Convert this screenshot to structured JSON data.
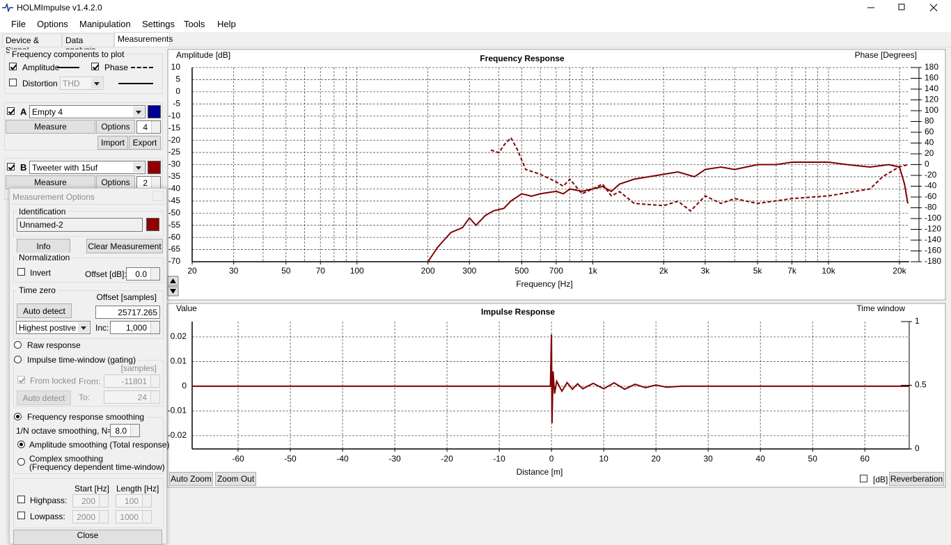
{
  "window": {
    "title": "HOLMImpulse  v1.4.2.0"
  },
  "menu": [
    "File",
    "Options",
    "Manipulation",
    "Settings",
    "Tools",
    "Help"
  ],
  "tabs": [
    "Device & Signal",
    "Data analysis",
    "Measurements"
  ],
  "components": {
    "title": "Frequency components to plot",
    "amplitude": "Amplitude",
    "phase": "Phase",
    "distortion": "Distortion",
    "thd": "THD"
  },
  "measurements": [
    {
      "letter": "A",
      "name": "Empty 4",
      "color": "#000090",
      "measure": "Measure",
      "options": "Options",
      "count": 4,
      "import": "Import",
      "export": "Export"
    },
    {
      "letter": "B",
      "name": "Tweeter with 15uf",
      "color": "#900000",
      "measure": "Measure",
      "options": "Options",
      "count": 2
    }
  ],
  "dialog": {
    "title": "Measurement Options",
    "identification": "Identification",
    "name": "Unnamed-2",
    "color": "#900000",
    "info": "Info",
    "clear": "Clear Measurement",
    "normalization": "Normalization",
    "invert": "Invert",
    "offset_db": "Offset [dB]:",
    "offset_db_value": "0.0",
    "time_zero": "Time zero",
    "offset_samples": "Offset [samples]",
    "auto_detect": "Auto detect",
    "offset_value": "25717.265",
    "method": "Highest postive pe",
    "inc": "Inc:",
    "inc_value": "1,000",
    "raw": "Raw response",
    "gating": "Impulse time-window (gating)",
    "samples": "[samples]",
    "from_locked": "From locked",
    "from": "From:",
    "from_value": "-11801",
    "auto_detect2": "Auto detect",
    "to": "To:",
    "to_value": "24",
    "smoothing": "Frequency response smoothing",
    "octave": "1/N octave smoothing, N=",
    "octave_value": "8.0",
    "amp_smoothing": "Amplitude smoothing (Total response)",
    "complex": "Complex smoothing",
    "complex_note": "(Frequency dependent time-window)",
    "start": "Start [Hz]",
    "length": "Length [Hz]",
    "highpass": "Highpass:",
    "hp_start": "200",
    "hp_length": "100",
    "lowpass": "Lowpass:",
    "lp_start": "2000",
    "lp_length": "1000",
    "close": "Close"
  },
  "buttons": {
    "auto_zoom": "Auto Zoom",
    "zoom_out": "Zoom Out",
    "db": "[dB]",
    "reverberation": "Reverberation"
  },
  "chart_data": [
    {
      "type": "line",
      "title": "Frequency Response",
      "ylabel": "Amplitude [dB]",
      "y2label": "Phase [Degrees]",
      "xlabel": "Frequency [Hz]",
      "xscale": "log",
      "xlim": [
        20,
        22000
      ],
      "xticks": [
        20,
        30,
        50,
        70,
        100,
        200,
        300,
        500,
        700,
        {
          "value": 1000,
          "label": "1k"
        },
        {
          "value": 2000,
          "label": "2k"
        },
        {
          "value": 3000,
          "label": "3k"
        },
        {
          "value": 5000,
          "label": "5k"
        },
        {
          "value": 7000,
          "label": "7k"
        },
        {
          "value": 10000,
          "label": "10k"
        },
        {
          "value": 20000,
          "label": "20k"
        }
      ],
      "xminor": [
        40,
        60,
        80,
        90,
        400,
        600,
        800,
        900,
        4000,
        6000,
        8000,
        9000
      ],
      "ylim": [
        -70,
        10
      ],
      "yticks": [
        10,
        5,
        0,
        -5,
        -10,
        -15,
        -20,
        -25,
        -30,
        -35,
        -40,
        -45,
        -50,
        -55,
        -60,
        -65,
        -70
      ],
      "y2lim": [
        -180,
        180
      ],
      "y2ticks": [
        180,
        160,
        140,
        120,
        100,
        80,
        60,
        40,
        20,
        0,
        -20,
        -40,
        -60,
        -80,
        -100,
        -120,
        -140,
        -160,
        -180
      ],
      "grid": true,
      "series": [
        {
          "color": "#800000",
          "linestyle": "solid",
          "x": [
            200,
            220,
            250,
            280,
            300,
            320,
            350,
            380,
            420,
            450,
            500,
            550,
            600,
            700,
            750,
            800,
            900,
            1000,
            1100,
            1200,
            1300,
            1500,
            2000,
            2300,
            2700,
            3000,
            3500,
            4000,
            5000,
            6000,
            7000,
            8000,
            10000,
            12000,
            15000,
            18000,
            20000,
            21000,
            21700
          ],
          "values": [
            -70,
            -64,
            -58,
            -56,
            -52,
            -55,
            -51,
            -49,
            -48,
            -45,
            -42,
            -43,
            -42,
            -41,
            -42,
            -40,
            -41,
            -40,
            -39,
            -41,
            -38,
            -36,
            -34,
            -33,
            -35,
            -32,
            -31,
            -32,
            -30,
            -30,
            -29,
            -29,
            -29,
            -30,
            -31,
            -30,
            -31,
            -38,
            -46
          ]
        },
        {
          "color": "#800000",
          "linestyle": "dashed",
          "axis": "y2",
          "x": [
            370,
            400,
            420,
            450,
            480,
            520,
            600,
            700,
            750,
            800,
            900,
            1000,
            1100,
            1200,
            1300,
            1500,
            2000,
            2300,
            2600,
            3000,
            3500,
            4000,
            5000,
            7000,
            10000,
            15000,
            17000,
            20000,
            21800
          ],
          "values": [
            27,
            22,
            36,
            50,
            27,
            -9,
            -18,
            -32,
            -40,
            -27,
            -54,
            -45,
            -36,
            -58,
            -50,
            -72,
            -76,
            -68,
            -86,
            -58,
            -72,
            -63,
            -72,
            -63,
            -58,
            -45,
            -22,
            -4,
            0
          ]
        }
      ]
    },
    {
      "type": "line",
      "title": "Impulse Response",
      "ylabel": "Value",
      "y2label": "Time window",
      "xlabel": "Distance [m]",
      "xlim": [
        -68.8,
        68.5
      ],
      "xticks": [
        -60,
        -50,
        -40,
        -30,
        -20,
        -10,
        0,
        10,
        20,
        30,
        40,
        50,
        60
      ],
      "ylim": [
        -0.0254,
        0.0262
      ],
      "yticks": [
        0.02,
        0.01,
        0,
        -0.01,
        -0.02
      ],
      "y2lim": [
        0,
        1
      ],
      "y2ticks": [
        1,
        0.5,
        0
      ],
      "grid": true,
      "series": [
        {
          "color": "#800000",
          "linestyle": "solid",
          "x": [
            -68.8,
            -0.2,
            0,
            0.1,
            0.3,
            0.6,
            1,
            2,
            3,
            4,
            5,
            6,
            8,
            10,
            12,
            14,
            16,
            18,
            20,
            22,
            25,
            68.5
          ],
          "values": [
            0,
            0,
            0.021,
            -0.015,
            0.006,
            -0.003,
            0.002,
            -0.002,
            0.0015,
            -0.0012,
            0.001,
            -0.001,
            0.0012,
            -0.001,
            0.0014,
            -0.0012,
            0.0008,
            -0.0006,
            0.0005,
            -0.0004,
            0,
            0
          ]
        }
      ]
    }
  ]
}
